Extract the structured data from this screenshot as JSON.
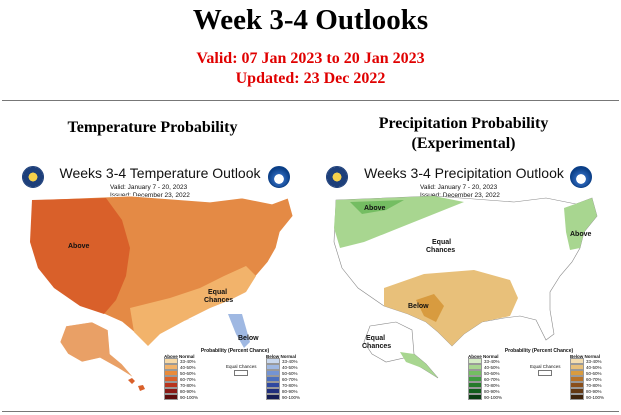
{
  "header": {
    "title": "Week 3-4 Outlooks",
    "valid": "Valid: 07 Jan 2023 to 20 Jan 2023",
    "updated": "Updated: 23 Dec 2022"
  },
  "temperature": {
    "section_title": "Temperature Probability",
    "map_title": "Weeks 3-4 Temperature Outlook",
    "valid_line": "Valid: January 7 - 20, 2023",
    "issued_line": "Issued: December 23, 2022",
    "labels": {
      "above": "Above",
      "equal": "Equal\nChances",
      "below": "Below"
    },
    "legend": {
      "title": "Probability (Percent Chance)",
      "left_header": "Above Normal",
      "right_header": "Below Normal",
      "equal_label": "Equal Chances",
      "left_items": [
        "33-40%",
        "40-50%",
        "50-60%",
        "60-70%",
        "70-80%",
        "80-90%",
        "90-100%"
      ],
      "right_items": [
        "33-40%",
        "40-50%",
        "50-60%",
        "60-70%",
        "70-80%",
        "80-90%",
        "90-100%"
      ],
      "left_colors": [
        "#f7d9a6",
        "#f2b36b",
        "#e98b3a",
        "#d9602a",
        "#b8341e",
        "#8a1a16",
        "#5e0d0d"
      ],
      "right_colors": [
        "#c9d8ee",
        "#9fb8e2",
        "#7494d2",
        "#4b6fbe",
        "#3049a0",
        "#202f7c",
        "#141c55"
      ]
    }
  },
  "precipitation": {
    "section_title_line1": "Precipitation Probability",
    "section_title_line2": "(Experimental)",
    "map_title": "Weeks 3-4 Precipitation Outlook",
    "valid_line": "Valid: January 7 - 20, 2023",
    "issued_line": "Issued: December 23, 2022",
    "labels": {
      "above": "Above",
      "equal": "Equal\nChances",
      "below": "Below"
    },
    "legend": {
      "title": "Probability (Percent Chance)",
      "left_header": "Above Normal",
      "right_header": "Below Normal",
      "equal_label": "Equal Chances",
      "left_items": [
        "33-40%",
        "40-50%",
        "50-60%",
        "60-70%",
        "70-80%",
        "80-90%",
        "90-100%"
      ],
      "right_items": [
        "33-40%",
        "40-50%",
        "50-60%",
        "60-70%",
        "70-80%",
        "80-90%",
        "90-100%"
      ],
      "left_colors": [
        "#d5ecc5",
        "#a8d690",
        "#74bd62",
        "#3f9b3f",
        "#257a2a",
        "#135d1d",
        "#0a3d12"
      ],
      "right_colors": [
        "#f3ddb0",
        "#e8c07a",
        "#d89b3f",
        "#b87227",
        "#8a4f1b",
        "#633812",
        "#3f230a"
      ]
    }
  }
}
